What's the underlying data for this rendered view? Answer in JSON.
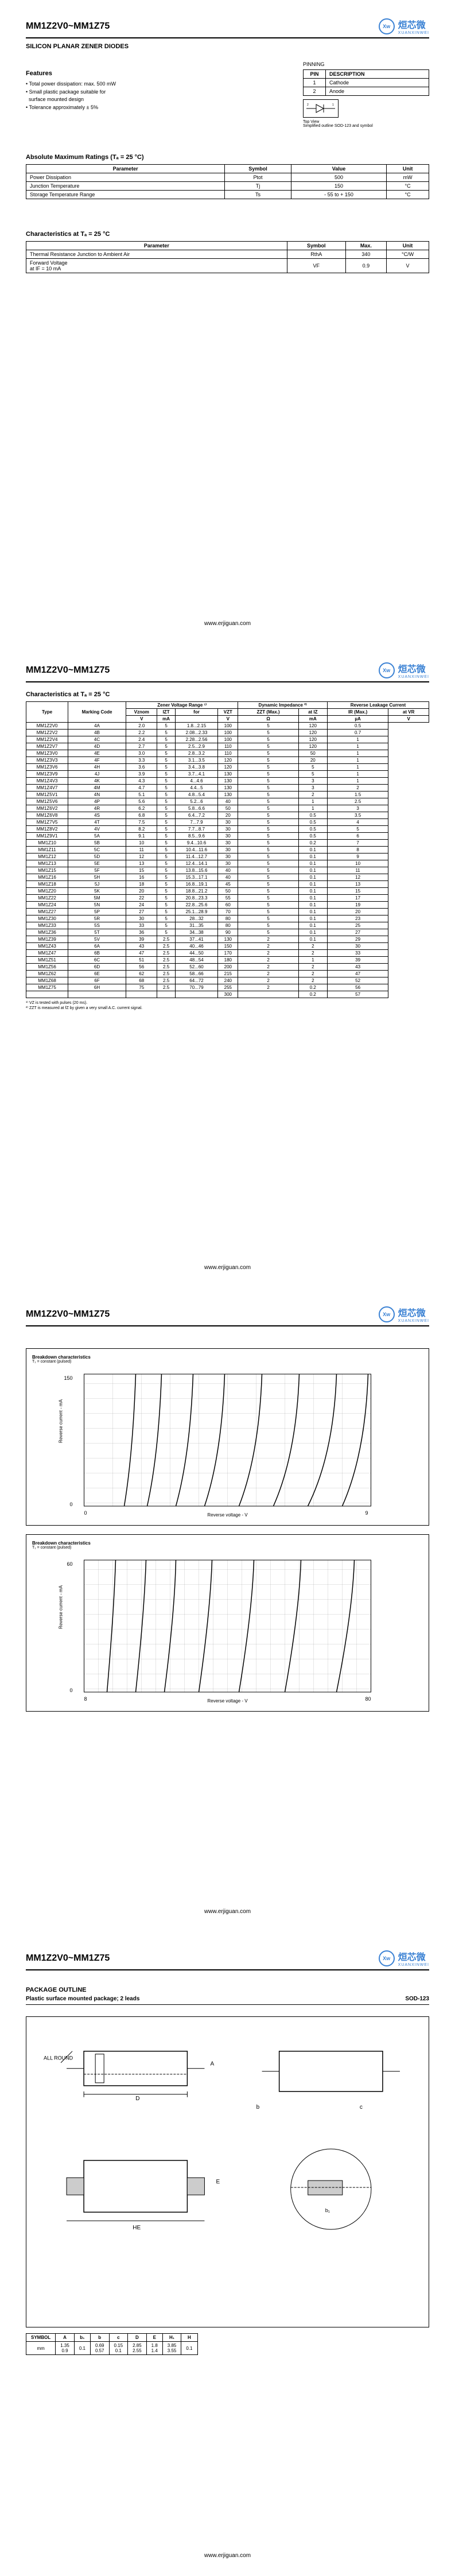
{
  "partNumber": "MM1Z2V0~MM1Z75",
  "subtitle": "SILICON PLANAR ZENER DIODES",
  "footer": "www.erjiguan.com",
  "logo": {
    "circle": "Xw",
    "cn": "烜芯微",
    "en": "XUANXINWEI"
  },
  "features": {
    "title": "Features",
    "items": [
      "• Total power dissipation: max. 500 mW",
      "• Small plastic package suitable for",
      "  surface mounted design",
      "• Tolerance approximately ± 5%"
    ]
  },
  "pinning": {
    "title": "PINNING",
    "headers": [
      "PIN",
      "DESCRIPTION"
    ],
    "rows": [
      [
        "1",
        "Cathode"
      ],
      [
        "2",
        "Anode"
      ]
    ],
    "topView": "Top View",
    "caption": "Simplified outline SOD-123 and symbol"
  },
  "absMax": {
    "title": "Absolute Maximum Ratings (Tₐ = 25 °C)",
    "headers": [
      "Parameter",
      "Symbol",
      "Value",
      "Unit"
    ],
    "rows": [
      [
        "Power Dissipation",
        "Ptot",
        "500",
        "mW"
      ],
      [
        "Junction Temperature",
        "Tj",
        "150",
        "°C"
      ],
      [
        "Storage Temperature Range",
        "Ts",
        "- 55 to + 150",
        "°C"
      ]
    ]
  },
  "char25": {
    "title": "Characteristics at Tₐ = 25 °C",
    "headers": [
      "Parameter",
      "Symbol",
      "Max.",
      "Unit"
    ],
    "rows": [
      [
        "Thermal Resistance Junction to Ambient Air",
        "RthA",
        "340",
        "°C/W"
      ],
      [
        "Forward Voltage\nat IF = 10 mA",
        "VF",
        "0.9",
        "V"
      ]
    ]
  },
  "charTable": {
    "title": "Characteristics at Tₐ = 25 °C",
    "topHeaders": [
      "Type",
      "Marking Code",
      "Zener Voltage Range ¹⁾",
      "Dynamic Impedance ²⁾",
      "Reverse Leakage Current"
    ],
    "subHeaders": [
      "Vznom",
      "IZT",
      "for",
      "VZT",
      "ZZT (Max.)",
      "at IZ",
      "IR (Max.)",
      "at VR"
    ],
    "units": [
      "V",
      "mA",
      "",
      "V",
      "Ω",
      "mA",
      "µA",
      "V"
    ],
    "rows": [
      [
        "MM1Z2V0",
        "4A",
        "2.0",
        "5",
        "1.8...2.15",
        "100",
        "5",
        "120",
        "0.5"
      ],
      [
        "MM1Z2V2",
        "4B",
        "2.2",
        "5",
        "2.08...2.33",
        "100",
        "5",
        "120",
        "0.7"
      ],
      [
        "MM1Z2V4",
        "4C",
        "2.4",
        "5",
        "2.28...2.56",
        "100",
        "5",
        "120",
        "1"
      ],
      [
        "MM1Z2V7",
        "4D",
        "2.7",
        "5",
        "2.5...2.9",
        "110",
        "5",
        "120",
        "1"
      ],
      [
        "MM1Z3V0",
        "4E",
        "3.0",
        "5",
        "2.8...3.2",
        "110",
        "5",
        "50",
        "1"
      ],
      [
        "MM1Z3V3",
        "4F",
        "3.3",
        "5",
        "3.1...3.5",
        "120",
        "5",
        "20",
        "1"
      ],
      [
        "MM1Z3V6",
        "4H",
        "3.6",
        "5",
        "3.4...3.8",
        "120",
        "5",
        "5",
        "1"
      ],
      [
        "MM1Z3V9",
        "4J",
        "3.9",
        "5",
        "3.7...4.1",
        "130",
        "5",
        "5",
        "1"
      ],
      [
        "MM1Z4V3",
        "4K",
        "4.3",
        "5",
        "4...4.6",
        "130",
        "5",
        "3",
        "1"
      ],
      [
        "MM1Z4V7",
        "4M",
        "4.7",
        "5",
        "4.4...5",
        "130",
        "5",
        "3",
        "2"
      ],
      [
        "MM1Z5V1",
        "4N",
        "5.1",
        "5",
        "4.8...5.4",
        "130",
        "5",
        "2",
        "1.5"
      ],
      [
        "MM1Z5V6",
        "4P",
        "5.6",
        "5",
        "5.2...6",
        "40",
        "5",
        "1",
        "2.5"
      ],
      [
        "MM1Z6V2",
        "4R",
        "6.2",
        "5",
        "5.8...6.6",
        "50",
        "5",
        "1",
        "3"
      ],
      [
        "MM1Z6V8",
        "4S",
        "6.8",
        "5",
        "6.4...7.2",
        "20",
        "5",
        "0.5",
        "3.5"
      ],
      [
        "MM1Z7V5",
        "4T",
        "7.5",
        "5",
        "7...7.9",
        "30",
        "5",
        "0.5",
        "4"
      ],
      [
        "MM1Z8V2",
        "4V",
        "8.2",
        "5",
        "7.7...8.7",
        "30",
        "5",
        "0.5",
        "5"
      ],
      [
        "MM1Z9V1",
        "5A",
        "9.1",
        "5",
        "8.5...9.6",
        "30",
        "5",
        "0.5",
        "6"
      ],
      [
        "MM1Z10",
        "5B",
        "10",
        "5",
        "9.4...10.6",
        "30",
        "5",
        "0.2",
        "7"
      ],
      [
        "MM1Z11",
        "5C",
        "11",
        "5",
        "10.4...11.6",
        "30",
        "5",
        "0.1",
        "8"
      ],
      [
        "MM1Z12",
        "5D",
        "12",
        "5",
        "11.4...12.7",
        "30",
        "5",
        "0.1",
        "9"
      ],
      [
        "MM1Z13",
        "5E",
        "13",
        "5",
        "12.4...14.1",
        "30",
        "5",
        "0.1",
        "10"
      ],
      [
        "MM1Z15",
        "5F",
        "15",
        "5",
        "13.8...15.6",
        "40",
        "5",
        "0.1",
        "11"
      ],
      [
        "MM1Z16",
        "5H",
        "16",
        "5",
        "15.3...17.1",
        "40",
        "5",
        "0.1",
        "12"
      ],
      [
        "MM1Z18",
        "5J",
        "18",
        "5",
        "16.8...19.1",
        "45",
        "5",
        "0.1",
        "13"
      ],
      [
        "MM1Z20",
        "5K",
        "20",
        "5",
        "18.8...21.2",
        "50",
        "5",
        "0.1",
        "15"
      ],
      [
        "MM1Z22",
        "5M",
        "22",
        "5",
        "20.8...23.3",
        "55",
        "5",
        "0.1",
        "17"
      ],
      [
        "MM1Z24",
        "5N",
        "24",
        "5",
        "22.8...25.6",
        "60",
        "5",
        "0.1",
        "19"
      ],
      [
        "MM1Z27",
        "5P",
        "27",
        "5",
        "25.1...28.9",
        "70",
        "5",
        "0.1",
        "20"
      ],
      [
        "MM1Z30",
        "5R",
        "30",
        "5",
        "28...32",
        "80",
        "5",
        "0.1",
        "23"
      ],
      [
        "MM1Z33",
        "5S",
        "33",
        "5",
        "31...35",
        "80",
        "5",
        "0.1",
        "25"
      ],
      [
        "MM1Z36",
        "5T",
        "36",
        "5",
        "34...38",
        "90",
        "5",
        "0.1",
        "27"
      ],
      [
        "MM1Z39",
        "5V",
        "39",
        "2.5",
        "37...41",
        "130",
        "2",
        "0.1",
        "29"
      ],
      [
        "MM1Z43",
        "6A",
        "43",
        "2.5",
        "40...46",
        "150",
        "2",
        "2",
        "30"
      ],
      [
        "MM1Z47",
        "6B",
        "47",
        "2.5",
        "44...50",
        "170",
        "2",
        "2",
        "33"
      ],
      [
        "MM1Z51",
        "6C",
        "51",
        "2.5",
        "48...54",
        "180",
        "2",
        "1",
        "39"
      ],
      [
        "MM1Z56",
        "6D",
        "56",
        "2.5",
        "52...60",
        "200",
        "2",
        "2",
        "43"
      ],
      [
        "MM1Z62",
        "6E",
        "62",
        "2.5",
        "58...66",
        "215",
        "2",
        "2",
        "47"
      ],
      [
        "MM1Z68",
        "6F",
        "68",
        "2.5",
        "64...72",
        "240",
        "2",
        "2",
        "52"
      ],
      [
        "MM1Z75",
        "6H",
        "75",
        "2.5",
        "70...79",
        "255",
        "2",
        "0.2",
        "56"
      ],
      [
        "",
        "",
        "",
        "",
        "",
        "300",
        "",
        "0.2",
        "57"
      ]
    ],
    "notes": [
      "¹⁾ VZ is tested with pulses (20 ms).",
      "²⁾ ZZT is measured at fZ by given a very small A.C. current signal."
    ]
  },
  "chart1": {
    "title": "Breakdown characteristics",
    "sub": "T₁ = constant (pulsed)"
  },
  "chart2": {
    "title": "Breakdown characteristics",
    "sub": "T₁ = constant (pulsed)"
  },
  "packageOutline": {
    "title": "PACKAGE OUTLINE",
    "sub": "Plastic surface mounted package; 2 leads",
    "sod": "SOD-123",
    "allRound": "ALL ROUND",
    "dims": {
      "headers": [
        "SYMBOL",
        "A",
        "b₁",
        "b",
        "c",
        "D",
        "E",
        "H₁",
        "H"
      ],
      "mm": [
        "mm",
        "1.35\n0.9",
        "0.1",
        "0.69\n0.57",
        "0.15\n0.1",
        "2.85\n2.55",
        "1.8\n1.4",
        "3.85\n3.55",
        "0.1"
      ]
    }
  }
}
